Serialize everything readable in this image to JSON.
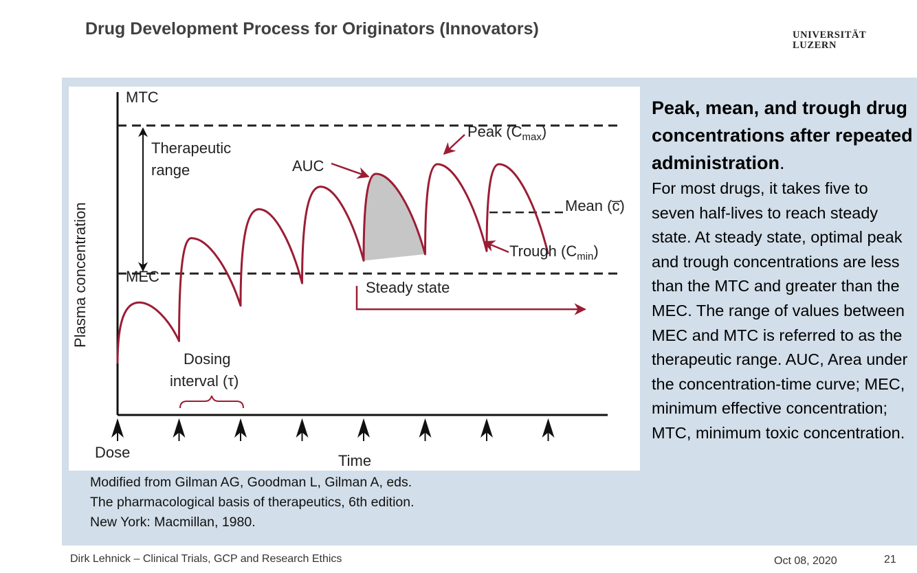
{
  "slide": {
    "title": "Drug Development Process for Originators (Innovators)",
    "logo_line1": "UNIVERSITÄT",
    "logo_line2": "LUZERN"
  },
  "chart_data": {
    "type": "line",
    "title": "",
    "xlabel": "Time",
    "ylabel": "Plasma concentration",
    "x_axis_start_label": "Dose",
    "ylim": [
      0,
      1
    ],
    "levels": {
      "MTC": 0.9,
      "MEC": 0.44
    },
    "dose_times": [
      0,
      1,
      2,
      3,
      4,
      5,
      6,
      7
    ],
    "series": [
      {
        "name": "Plasma concentration",
        "color": "#9b1d34",
        "points": [
          [
            0.0,
            0.16
          ],
          [
            0.35,
            0.35
          ],
          [
            1.0,
            0.23
          ],
          [
            1.2,
            0.55
          ],
          [
            2.0,
            0.34
          ],
          [
            2.3,
            0.64
          ],
          [
            3.0,
            0.41
          ],
          [
            3.3,
            0.71
          ],
          [
            4.0,
            0.48
          ],
          [
            4.2,
            0.75
          ],
          [
            5.0,
            0.5
          ],
          [
            5.2,
            0.78
          ],
          [
            6.0,
            0.51
          ],
          [
            6.2,
            0.78
          ],
          [
            7.0,
            0.5
          ]
        ]
      }
    ],
    "auc_shaded_interval": [
      4,
      5
    ],
    "mean_level": 0.63,
    "steady_state_from": 4,
    "annotations": {
      "mtc": "MTC",
      "mec": "MEC",
      "therapeutic_1": "Therapeutic",
      "therapeutic_2": "range",
      "auc": "AUC",
      "peak_main": "Peak (C",
      "peak_sub": "max",
      "peak_close": ")",
      "mean": "Mean (c̅)",
      "trough_main": "Trough (C",
      "trough_sub": "min",
      "trough_close": ")",
      "steady_state": "Steady state",
      "dosing_1": "Dosing",
      "dosing_2": "interval (τ)"
    }
  },
  "citation": "Modified from Gilman AG, Goodman L, Gilman A, eds.\nThe pharmacological basis of therapeutics, 6th edition.\nNew York: Macmillan, 1980.",
  "side_text": {
    "heading": "Peak, mean, and trough drug concentrations after repeated administration",
    "heading_end": ".",
    "body": "For most drugs, it takes five to seven half-lives to reach steady state. At steady state, optimal peak and trough concentrations are less than the MTC and greater than the MEC. The range of values between MEC and MTC is referred to as the therapeutic range. AUC, Area under the concentration-time curve; MEC, minimum effective concentration; MTC, minimum toxic concentration."
  },
  "footer": {
    "left": "Dirk Lehnick – Clinical Trials, GCP and Research Ethics",
    "date": "Oct 08, 2020",
    "page": "21"
  },
  "colors": {
    "curve": "#9b1d34",
    "auc_fill": "#c6c6c6",
    "panel": "#d2dee9"
  }
}
